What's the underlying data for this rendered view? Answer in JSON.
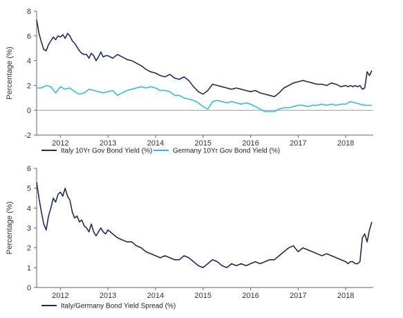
{
  "chart_data": [
    {
      "type": "line",
      "ylabel": "Percentage (%)",
      "xlim": [
        2011.5,
        2018.58
      ],
      "ylim": [
        -2,
        8
      ],
      "yticks": [
        -2,
        0,
        2,
        4,
        6,
        8
      ],
      "xtick_labels": [
        "2012",
        "2013",
        "2014",
        "2015",
        "2016",
        "2017",
        "2018"
      ],
      "xtick_values": [
        2012,
        2013,
        2014,
        2015,
        2016,
        2017,
        2018
      ],
      "zero_line": true,
      "grid": false,
      "legend_position": "bottom",
      "series": [
        {
          "name": "Italy 10Yr Gov Bond Yield (%)",
          "color": "#1f2a5a",
          "x": [
            2011.5,
            2011.55,
            2011.6,
            2011.65,
            2011.7,
            2011.75,
            2011.8,
            2011.85,
            2011.9,
            2011.95,
            2012.0,
            2012.05,
            2012.1,
            2012.15,
            2012.2,
            2012.25,
            2012.3,
            2012.35,
            2012.4,
            2012.45,
            2012.5,
            2012.55,
            2012.6,
            2012.65,
            2012.7,
            2012.75,
            2012.8,
            2012.85,
            2012.9,
            2012.95,
            2013.0,
            2013.1,
            2013.2,
            2013.3,
            2013.4,
            2013.5,
            2013.6,
            2013.7,
            2013.8,
            2013.9,
            2014.0,
            2014.1,
            2014.2,
            2014.3,
            2014.4,
            2014.5,
            2014.6,
            2014.7,
            2014.8,
            2014.9,
            2015.0,
            2015.1,
            2015.2,
            2015.3,
            2015.4,
            2015.5,
            2015.6,
            2015.7,
            2015.8,
            2015.9,
            2016.0,
            2016.1,
            2016.2,
            2016.3,
            2016.4,
            2016.5,
            2016.6,
            2016.7,
            2016.8,
            2016.9,
            2017.0,
            2017.1,
            2017.2,
            2017.3,
            2017.4,
            2017.5,
            2017.6,
            2017.7,
            2017.8,
            2017.9,
            2018.0,
            2018.05,
            2018.1,
            2018.15,
            2018.2,
            2018.25,
            2018.3,
            2018.35,
            2018.4,
            2018.45,
            2018.5,
            2018.55
          ],
          "values": [
            7.3,
            6.2,
            5.5,
            4.9,
            4.8,
            5.3,
            5.6,
            5.9,
            5.7,
            6.0,
            5.9,
            6.1,
            5.8,
            6.2,
            6.0,
            5.6,
            5.4,
            5.1,
            4.8,
            4.6,
            4.5,
            4.5,
            4.2,
            4.6,
            4.4,
            4.0,
            4.3,
            4.7,
            4.3,
            4.4,
            4.4,
            4.2,
            4.5,
            4.3,
            4.1,
            4.0,
            3.8,
            3.6,
            3.3,
            3.1,
            3.0,
            2.8,
            2.7,
            2.9,
            2.6,
            2.5,
            2.7,
            2.4,
            1.9,
            1.5,
            1.3,
            1.6,
            2.1,
            2.0,
            1.9,
            1.8,
            1.7,
            1.8,
            1.7,
            1.6,
            1.5,
            1.6,
            1.4,
            1.3,
            1.2,
            1.1,
            1.4,
            1.8,
            2.0,
            2.2,
            2.3,
            2.4,
            2.3,
            2.2,
            2.1,
            2.1,
            2.0,
            2.2,
            2.1,
            1.9,
            2.0,
            1.9,
            2.0,
            1.9,
            2.0,
            1.9,
            2.0,
            1.7,
            1.8,
            3.1,
            2.8,
            3.2
          ]
        },
        {
          "name": "Germany 10Yr Gov Bond Yield (%)",
          "color": "#29c0e0",
          "x": [
            2011.5,
            2011.6,
            2011.7,
            2011.8,
            2011.9,
            2012.0,
            2012.1,
            2012.2,
            2012.3,
            2012.4,
            2012.5,
            2012.6,
            2012.7,
            2012.8,
            2012.9,
            2013.0,
            2013.1,
            2013.2,
            2013.3,
            2013.4,
            2013.5,
            2013.6,
            2013.7,
            2013.8,
            2013.9,
            2014.0,
            2014.1,
            2014.2,
            2014.3,
            2014.4,
            2014.5,
            2014.6,
            2014.7,
            2014.8,
            2014.9,
            2015.0,
            2015.1,
            2015.2,
            2015.3,
            2015.4,
            2015.5,
            2015.6,
            2015.7,
            2015.8,
            2015.9,
            2016.0,
            2016.1,
            2016.2,
            2016.3,
            2016.4,
            2016.5,
            2016.6,
            2016.7,
            2016.8,
            2016.9,
            2017.0,
            2017.1,
            2017.2,
            2017.3,
            2017.4,
            2017.5,
            2017.6,
            2017.7,
            2017.8,
            2017.9,
            2018.0,
            2018.1,
            2018.2,
            2018.3,
            2018.4,
            2018.5,
            2018.55
          ],
          "values": [
            1.8,
            1.8,
            2.0,
            1.9,
            1.4,
            1.9,
            1.7,
            1.8,
            1.5,
            1.3,
            1.4,
            1.7,
            1.6,
            1.5,
            1.4,
            1.5,
            1.6,
            1.2,
            1.4,
            1.6,
            1.7,
            1.8,
            1.9,
            1.8,
            1.9,
            1.8,
            1.6,
            1.6,
            1.5,
            1.2,
            1.2,
            1.0,
            0.9,
            0.8,
            0.6,
            0.3,
            0.1,
            0.7,
            0.8,
            0.7,
            0.6,
            0.7,
            0.6,
            0.5,
            0.6,
            0.5,
            0.3,
            0.1,
            -0.1,
            -0.1,
            -0.1,
            0.1,
            0.2,
            0.2,
            0.3,
            0.4,
            0.4,
            0.3,
            0.4,
            0.4,
            0.5,
            0.4,
            0.5,
            0.4,
            0.5,
            0.5,
            0.7,
            0.6,
            0.5,
            0.4,
            0.4,
            0.4
          ]
        }
      ]
    },
    {
      "type": "line",
      "ylabel": "Percentage (%)",
      "xlim": [
        2011.5,
        2018.58
      ],
      "ylim": [
        0,
        6
      ],
      "yticks": [
        0,
        1,
        2,
        3,
        4,
        5,
        6
      ],
      "xtick_labels": [
        "2012",
        "2013",
        "2014",
        "2015",
        "2016",
        "2017",
        "2018"
      ],
      "xtick_values": [
        2012,
        2013,
        2014,
        2015,
        2016,
        2017,
        2018
      ],
      "zero_line": false,
      "grid": false,
      "legend_position": "bottom",
      "series": [
        {
          "name": "Italy/Germany Bond Yield Spread (%)",
          "color": "#1f2a5a",
          "x": [
            2011.5,
            2011.55,
            2011.6,
            2011.65,
            2011.7,
            2011.75,
            2011.8,
            2011.85,
            2011.9,
            2011.95,
            2012.0,
            2012.05,
            2012.1,
            2012.15,
            2012.2,
            2012.25,
            2012.3,
            2012.35,
            2012.4,
            2012.45,
            2012.5,
            2012.55,
            2012.6,
            2012.65,
            2012.7,
            2012.75,
            2012.8,
            2012.85,
            2012.9,
            2012.95,
            2013.0,
            2013.1,
            2013.2,
            2013.3,
            2013.4,
            2013.5,
            2013.6,
            2013.7,
            2013.8,
            2013.9,
            2014.0,
            2014.1,
            2014.2,
            2014.3,
            2014.4,
            2014.5,
            2014.6,
            2014.7,
            2014.8,
            2014.9,
            2015.0,
            2015.1,
            2015.2,
            2015.3,
            2015.4,
            2015.5,
            2015.6,
            2015.7,
            2015.8,
            2015.9,
            2016.0,
            2016.1,
            2016.2,
            2016.3,
            2016.4,
            2016.5,
            2016.6,
            2016.7,
            2016.8,
            2016.9,
            2017.0,
            2017.1,
            2017.2,
            2017.3,
            2017.4,
            2017.5,
            2017.6,
            2017.7,
            2017.8,
            2017.9,
            2018.0,
            2018.05,
            2018.1,
            2018.15,
            2018.2,
            2018.25,
            2018.3,
            2018.35,
            2018.4,
            2018.45,
            2018.5,
            2018.55
          ],
          "values": [
            5.3,
            4.5,
            3.8,
            3.2,
            2.9,
            3.6,
            4.0,
            4.5,
            4.3,
            4.7,
            4.8,
            4.6,
            5.0,
            4.6,
            4.4,
            3.8,
            3.5,
            3.6,
            3.3,
            3.4,
            3.1,
            3.0,
            2.8,
            3.2,
            2.8,
            2.6,
            2.8,
            3.0,
            2.8,
            2.7,
            2.9,
            2.7,
            2.5,
            2.4,
            2.3,
            2.3,
            2.1,
            2.0,
            1.8,
            1.7,
            1.6,
            1.5,
            1.6,
            1.5,
            1.4,
            1.4,
            1.6,
            1.5,
            1.3,
            1.1,
            1.0,
            1.2,
            1.4,
            1.3,
            1.1,
            1.0,
            1.2,
            1.1,
            1.2,
            1.1,
            1.2,
            1.3,
            1.2,
            1.3,
            1.4,
            1.4,
            1.6,
            1.8,
            2.0,
            2.1,
            1.8,
            2.0,
            1.9,
            1.8,
            1.7,
            1.6,
            1.7,
            1.6,
            1.5,
            1.4,
            1.3,
            1.2,
            1.3,
            1.3,
            1.2,
            1.2,
            1.3,
            2.5,
            2.7,
            2.3,
            2.9,
            3.3
          ]
        }
      ]
    }
  ]
}
